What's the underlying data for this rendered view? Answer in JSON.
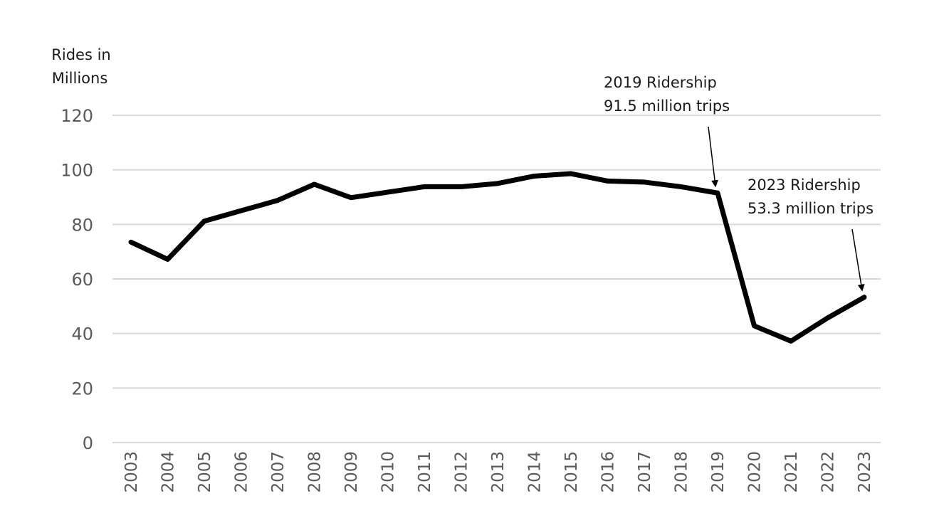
{
  "chart_data": {
    "type": "line",
    "ylabel_lines": [
      "Rides in",
      "Millions"
    ],
    "ylim": [
      0,
      120
    ],
    "yticks": [
      0,
      20,
      40,
      60,
      80,
      100,
      120
    ],
    "grid": true,
    "x": [
      "2003",
      "2004",
      "2005",
      "2006",
      "2007",
      "2008",
      "2009",
      "2010",
      "2011",
      "2012",
      "2013",
      "2014",
      "2015",
      "2016",
      "2017",
      "2018",
      "2019",
      "2020",
      "2021",
      "2022",
      "2023"
    ],
    "series": [
      {
        "values": [
          73.5,
          67.2,
          81.2,
          85.0,
          88.8,
          94.7,
          89.8,
          91.8,
          93.8,
          93.8,
          95.0,
          97.7,
          98.6,
          95.9,
          95.5,
          93.8,
          91.5,
          42.8,
          37.2,
          45.7,
          53.3
        ],
        "color": "#000000"
      }
    ],
    "annotations": [
      {
        "x": "2019",
        "lines": [
          "2019 Ridership",
          "91.5 million trips"
        ]
      },
      {
        "x": "2023",
        "lines": [
          "2023 Ridership",
          "53.3 million trips"
        ]
      }
    ]
  }
}
